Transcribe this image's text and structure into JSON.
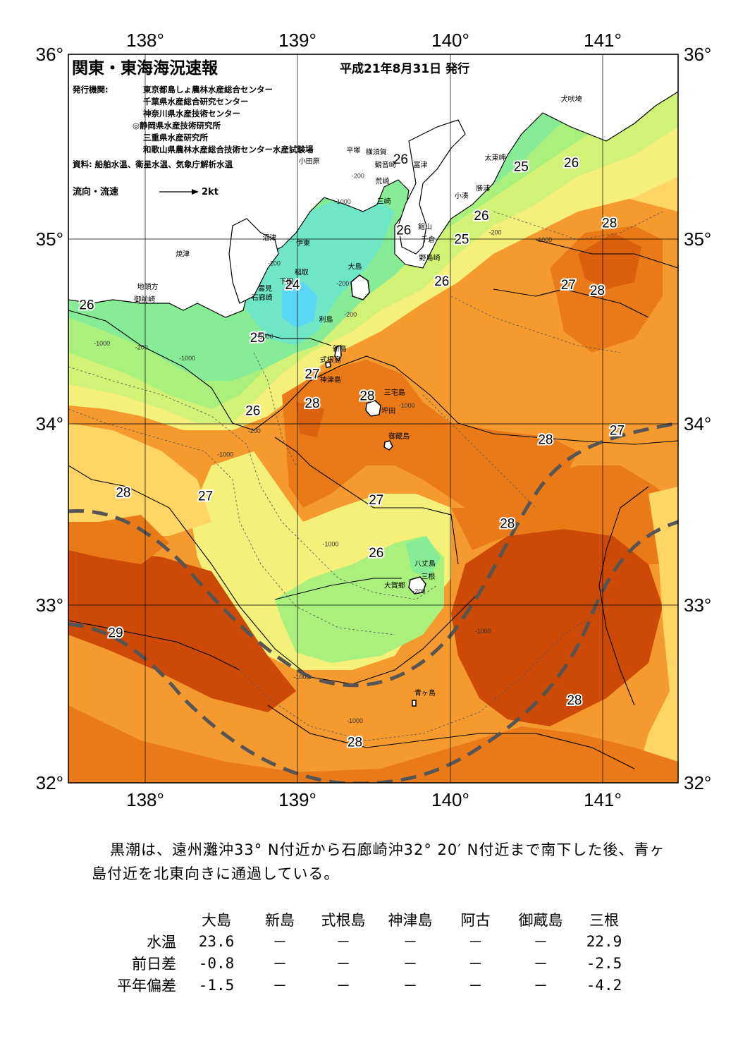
{
  "header": {
    "title": "関東・東海海況速報",
    "date": "平成21年8月31日 発行",
    "publisher_label": "発行機関:",
    "publishers": [
      "東京都島しょ農林水産総合センター",
      "千葉県水産総合研究センター",
      "神奈川県水産技術センター",
      "◎静岡県水産技術研究所",
      "三重県水産研究所",
      "和歌山県農林水産総合技術センター水産試験場"
    ],
    "source": "資料: 船舶水温、衛星水温、気象庁解析水温",
    "legend_label": "流向・流速",
    "legend_scale": "2kt"
  },
  "axes": {
    "lon_labels": [
      "138°",
      "139°",
      "140°",
      "141°"
    ],
    "lat_labels": [
      "36°",
      "35°",
      "34°",
      "33°",
      "32°"
    ]
  },
  "isotherm_labels": [
    {
      "text": "26",
      "lon": 137.62,
      "lat": 34.6
    },
    {
      "text": "25",
      "lon": 138.74,
      "lat": 34.42
    },
    {
      "text": "24",
      "lon": 138.97,
      "lat": 34.71
    },
    {
      "text": "26",
      "lon": 138.71,
      "lat": 34.02
    },
    {
      "text": "27",
      "lon": 139.1,
      "lat": 34.22
    },
    {
      "text": "28",
      "lon": 139.1,
      "lat": 34.06
    },
    {
      "text": "28",
      "lon": 139.46,
      "lat": 34.1
    },
    {
      "text": "26",
      "lon": 139.68,
      "lat": 35.4
    },
    {
      "text": "26",
      "lon": 139.7,
      "lat": 35.01
    },
    {
      "text": "25",
      "lon": 140.08,
      "lat": 34.96
    },
    {
      "text": "26",
      "lon": 139.95,
      "lat": 34.73
    },
    {
      "text": "26",
      "lon": 140.21,
      "lat": 35.09
    },
    {
      "text": "25",
      "lon": 140.47,
      "lat": 35.36
    },
    {
      "text": "26",
      "lon": 140.8,
      "lat": 35.38
    },
    {
      "text": "28",
      "lon": 141.05,
      "lat": 35.05
    },
    {
      "text": "27",
      "lon": 140.78,
      "lat": 34.71
    },
    {
      "text": "28",
      "lon": 140.97,
      "lat": 34.68
    },
    {
      "text": "27",
      "lon": 141.1,
      "lat": 33.91
    },
    {
      "text": "28",
      "lon": 140.63,
      "lat": 33.86
    },
    {
      "text": "28",
      "lon": 137.86,
      "lat": 33.57
    },
    {
      "text": "27",
      "lon": 138.4,
      "lat": 33.55
    },
    {
      "text": "27",
      "lon": 139.52,
      "lat": 33.53
    },
    {
      "text": "28",
      "lon": 140.38,
      "lat": 33.4
    },
    {
      "text": "26",
      "lon": 139.52,
      "lat": 33.24
    },
    {
      "text": "29",
      "lon": 137.81,
      "lat": 32.8
    },
    {
      "text": "28",
      "lon": 140.82,
      "lat": 32.43
    },
    {
      "text": "28",
      "lon": 139.38,
      "lat": 32.2
    }
  ],
  "place_names": [
    {
      "text": "犬吠埼",
      "lon": 140.8,
      "lat": 35.74
    },
    {
      "text": "太東岬",
      "lon": 140.3,
      "lat": 35.42
    },
    {
      "text": "勝浦",
      "lon": 140.22,
      "lat": 35.25
    },
    {
      "text": "小湊",
      "lon": 140.08,
      "lat": 35.21
    },
    {
      "text": "富津",
      "lon": 139.81,
      "lat": 35.38
    },
    {
      "text": "横須賀",
      "lon": 139.52,
      "lat": 35.45
    },
    {
      "text": "平塚",
      "lon": 139.37,
      "lat": 35.46
    },
    {
      "text": "観音崎",
      "lon": 139.58,
      "lat": 35.38
    },
    {
      "text": "荒崎",
      "lon": 139.56,
      "lat": 35.29
    },
    {
      "text": "小田原",
      "lon": 139.08,
      "lat": 35.4
    },
    {
      "text": "三崎",
      "lon": 139.57,
      "lat": 35.18
    },
    {
      "text": "館山",
      "lon": 139.84,
      "lat": 35.04
    },
    {
      "text": "千倉",
      "lon": 139.86,
      "lat": 34.97
    },
    {
      "text": "野島崎",
      "lon": 139.87,
      "lat": 34.87
    },
    {
      "text": "沼津",
      "lon": 138.82,
      "lat": 34.98
    },
    {
      "text": "伊東",
      "lon": 139.04,
      "lat": 34.95
    },
    {
      "text": "焼津",
      "lon": 138.25,
      "lat": 34.89
    },
    {
      "text": "稲取",
      "lon": 139.03,
      "lat": 34.79
    },
    {
      "text": "下田",
      "lon": 138.93,
      "lat": 34.74
    },
    {
      "text": "大島",
      "lon": 139.38,
      "lat": 34.82
    },
    {
      "text": "地頭方",
      "lon": 138.02,
      "lat": 34.71
    },
    {
      "text": "雲見",
      "lon": 138.79,
      "lat": 34.7
    },
    {
      "text": "御前崎",
      "lon": 138.0,
      "lat": 34.64
    },
    {
      "text": "石廊崎",
      "lon": 138.77,
      "lat": 34.65
    },
    {
      "text": "利島",
      "lon": 139.19,
      "lat": 34.53
    },
    {
      "text": "新島",
      "lon": 139.28,
      "lat": 34.37
    },
    {
      "text": "式根島",
      "lon": 139.22,
      "lat": 34.31
    },
    {
      "text": "神津島",
      "lon": 139.22,
      "lat": 34.2
    },
    {
      "text": "三宅島",
      "lon": 139.64,
      "lat": 34.13
    },
    {
      "text": "坪田",
      "lon": 139.6,
      "lat": 34.03
    },
    {
      "text": "御蔵島",
      "lon": 139.67,
      "lat": 33.89
    },
    {
      "text": "八丈島",
      "lon": 139.84,
      "lat": 33.19
    },
    {
      "text": "三根",
      "lon": 139.86,
      "lat": 33.12
    },
    {
      "text": "大賀郷",
      "lon": 139.64,
      "lat": 33.07
    },
    {
      "text": "青ヶ島",
      "lon": 139.84,
      "lat": 32.48
    }
  ],
  "depth_labels": [
    {
      "text": "-200",
      "lon": 139.4,
      "lat": 35.32
    },
    {
      "text": "-1000",
      "lon": 139.3,
      "lat": 35.18
    },
    {
      "text": "-200",
      "lon": 140.3,
      "lat": 35.01
    },
    {
      "text": "-1000",
      "lon": 140.62,
      "lat": 34.97
    },
    {
      "text": "-200",
      "lon": 138.85,
      "lat": 34.84
    },
    {
      "text": "-200",
      "lon": 139.3,
      "lat": 34.73
    },
    {
      "text": "-200",
      "lon": 139.35,
      "lat": 34.56
    },
    {
      "text": "-1000",
      "lon": 138.79,
      "lat": 34.44
    },
    {
      "text": "-1000",
      "lon": 137.72,
      "lat": 34.4
    },
    {
      "text": "-200",
      "lon": 137.98,
      "lat": 34.38
    },
    {
      "text": "-1000",
      "lon": 138.28,
      "lat": 34.32
    },
    {
      "text": "-200",
      "lon": 138.72,
      "lat": 33.92
    },
    {
      "text": "-1000",
      "lon": 138.53,
      "lat": 33.79
    },
    {
      "text": "-1000",
      "lon": 139.72,
      "lat": 34.06
    },
    {
      "text": "-1000",
      "lon": 139.22,
      "lat": 33.3
    },
    {
      "text": "-200",
      "lon": 139.8,
      "lat": 33.04
    },
    {
      "text": "-1000",
      "lon": 140.22,
      "lat": 32.82
    },
    {
      "text": "-1000",
      "lon": 139.03,
      "lat": 32.57
    },
    {
      "text": "-1000",
      "lon": 139.38,
      "lat": 32.33
    }
  ],
  "colors": {
    "land": "#ffffff",
    "t23": "#5ad7f5",
    "t24": "#6fe6c6",
    "t25": "#86ec96",
    "t25b": "#a9f07c",
    "t26": "#d2f277",
    "t26b": "#f4f07a",
    "t27": "#ffd565",
    "t27b": "#feb849",
    "t28": "#f59a2f",
    "t28b": "#ea7a17",
    "t29": "#cc4a06",
    "kuroshio": "#555555",
    "isotherm": "#000000"
  },
  "summary": "黒潮は、遠州灘沖33° N付近から石廊崎沖32° 20′ N付近まで南下した後、青ヶ島付近を北東向きに通過している。",
  "observation_table": {
    "stations": [
      "大島",
      "新島",
      "式根島",
      "神津島",
      "阿古",
      "御蔵島",
      "三根"
    ],
    "rows": [
      {
        "label": "水温",
        "values": [
          "23.6",
          "－",
          "－",
          "－",
          "－",
          "－",
          "22.9"
        ]
      },
      {
        "label": "前日差",
        "values": [
          "-0.8",
          "－",
          "－",
          "－",
          "－",
          "－",
          "-2.5"
        ]
      },
      {
        "label": "平年偏差",
        "values": [
          "-1.5",
          "－",
          "－",
          "－",
          "－",
          "－",
          "-4.2"
        ]
      }
    ]
  }
}
